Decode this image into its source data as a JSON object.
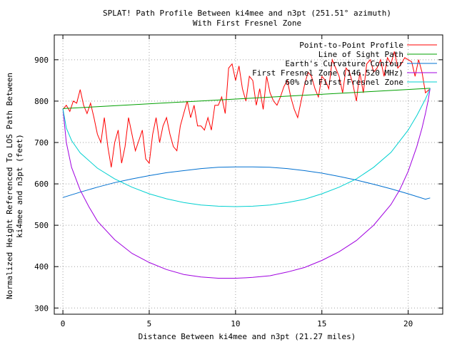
{
  "chart_data": {
    "type": "line",
    "title": "SPLAT! Path Profile Between ki4mee and n3pt (251.51° azimuth)",
    "subtitle": "With First Fresnel Zone",
    "xlabel": "Distance Between ki4mee and n3pt (21.27 miles)",
    "ylabel_line1": "Normalized Height Referenced To LOS Path Between",
    "ylabel_line2": "ki4mee and n3pt (feet)",
    "xlim": [
      -0.5,
      22.0
    ],
    "ylim": [
      285,
      960
    ],
    "xticks": [
      0,
      5,
      10,
      15,
      20
    ],
    "yticks": [
      300,
      400,
      500,
      600,
      700,
      800,
      900
    ],
    "grid": true,
    "legend_position": "top-right",
    "series": [
      {
        "name": "Point-to-Point Profile",
        "color": "#ff0000",
        "x": [
          0,
          0.2,
          0.4,
          0.6,
          0.8,
          1.0,
          1.2,
          1.4,
          1.6,
          1.8,
          2.0,
          2.2,
          2.4,
          2.6,
          2.8,
          3.0,
          3.2,
          3.4,
          3.6,
          3.8,
          4.0,
          4.2,
          4.4,
          4.6,
          4.8,
          5.0,
          5.2,
          5.4,
          5.6,
          5.8,
          6.0,
          6.2,
          6.4,
          6.6,
          6.8,
          7.0,
          7.2,
          7.4,
          7.6,
          7.8,
          8.0,
          8.2,
          8.4,
          8.6,
          8.8,
          9.0,
          9.2,
          9.4,
          9.6,
          9.8,
          10.0,
          10.2,
          10.4,
          10.6,
          10.8,
          11.0,
          11.2,
          11.4,
          11.6,
          11.8,
          12.0,
          12.2,
          12.4,
          12.6,
          12.8,
          13.0,
          13.2,
          13.4,
          13.6,
          13.8,
          14.0,
          14.2,
          14.4,
          14.6,
          14.8,
          15.0,
          15.2,
          15.4,
          15.6,
          15.8,
          16.0,
          16.2,
          16.4,
          16.6,
          16.8,
          17.0,
          17.2,
          17.4,
          17.6,
          17.8,
          18.0,
          18.2,
          18.4,
          18.6,
          18.8,
          19.0,
          19.2,
          19.4,
          19.6,
          19.8,
          20.0,
          20.2,
          20.4,
          20.6,
          20.8,
          21.0,
          21.27
        ],
        "y": [
          780,
          790,
          775,
          800,
          795,
          828,
          790,
          770,
          795,
          760,
          720,
          700,
          760,
          690,
          640,
          700,
          730,
          650,
          690,
          760,
          720,
          680,
          705,
          730,
          660,
          650,
          720,
          760,
          700,
          740,
          760,
          720,
          690,
          680,
          740,
          770,
          800,
          760,
          790,
          740,
          740,
          730,
          760,
          730,
          790,
          790,
          810,
          770,
          880,
          890,
          850,
          885,
          830,
          800,
          860,
          850,
          790,
          830,
          780,
          860,
          820,
          800,
          790,
          810,
          835,
          850,
          810,
          780,
          760,
          800,
          840,
          870,
          860,
          830,
          810,
          860,
          850,
          830,
          900,
          880,
          860,
          820,
          880,
          870,
          840,
          800,
          870,
          820,
          890,
          900,
          870,
          880,
          900,
          860,
          905,
          890,
          920,
          880,
          890,
          905,
          900,
          895,
          860,
          900,
          870,
          820,
          830
        ]
      },
      {
        "name": "Line of Sight Path",
        "color": "#00a000",
        "x": [
          0,
          21.27
        ],
        "y": [
          782,
          831
        ]
      },
      {
        "name": "Earth's Curvature Contour",
        "color": "#0070d0",
        "x": [
          0,
          1,
          2,
          3,
          4,
          5,
          6,
          7,
          8,
          9,
          10,
          11,
          12,
          13,
          14,
          15,
          16,
          17,
          18,
          19,
          20,
          21,
          21.27
        ],
        "y": [
          567,
          580,
          592,
          603,
          612,
          620,
          627,
          632,
          637,
          640,
          641,
          641,
          640,
          637,
          632,
          626,
          618,
          609,
          599,
          588,
          576,
          563,
          566
        ]
      },
      {
        "name": "First Fresnel Zone (146.520 MHz)",
        "color": "#a000e0",
        "x": [
          0,
          0.2,
          0.5,
          1,
          1.5,
          2,
          3,
          4,
          5,
          6,
          7,
          8,
          9,
          10,
          10.6,
          11,
          12,
          13,
          14,
          15,
          16,
          17,
          18,
          19,
          19.5,
          20,
          20.5,
          20.8,
          21.0,
          21.15,
          21.27
        ],
        "y": [
          782,
          700,
          640,
          585,
          545,
          510,
          465,
          432,
          410,
          393,
          381,
          375,
          372,
          372,
          373,
          374,
          378,
          387,
          398,
          415,
          436,
          463,
          500,
          550,
          585,
          630,
          690,
          735,
          770,
          800,
          831
        ]
      },
      {
        "name": "60% of First Fresnel Zone",
        "color": "#00d0d0",
        "x": [
          0,
          0.2,
          0.5,
          1,
          2,
          3,
          4,
          5,
          6,
          7,
          8,
          9,
          10,
          11,
          12,
          13,
          14,
          15,
          16,
          17,
          18,
          19,
          20,
          20.5,
          21.0,
          21.27
        ],
        "y": [
          782,
          735,
          705,
          675,
          638,
          612,
          592,
          576,
          564,
          555,
          549,
          546,
          545,
          546,
          549,
          555,
          563,
          576,
          592,
          612,
          640,
          676,
          730,
          765,
          805,
          831
        ]
      }
    ]
  }
}
